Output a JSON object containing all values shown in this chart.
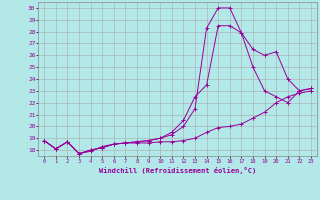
{
  "xlabel": "Windchill (Refroidissement éolien,°C)",
  "background_color": "#b2e8e8",
  "grid_color": "#aaaaaa",
  "line_color": "#990099",
  "xlim": [
    -0.5,
    23.5
  ],
  "ylim": [
    17.5,
    30.5
  ],
  "yticks": [
    18,
    19,
    20,
    21,
    22,
    23,
    24,
    25,
    26,
    27,
    28,
    29,
    30
  ],
  "xticks": [
    0,
    1,
    2,
    3,
    4,
    5,
    6,
    7,
    8,
    9,
    10,
    11,
    12,
    13,
    14,
    15,
    16,
    17,
    18,
    19,
    20,
    21,
    22,
    23
  ],
  "line1_x": [
    0,
    1,
    2,
    3,
    4,
    5,
    6,
    7,
    8,
    9,
    10,
    11,
    12,
    13,
    14,
    15,
    16,
    17,
    18,
    19,
    20,
    21,
    22,
    23
  ],
  "line1_y": [
    18.8,
    18.1,
    18.7,
    17.7,
    17.9,
    18.3,
    18.5,
    18.6,
    18.6,
    18.6,
    18.7,
    18.7,
    18.8,
    19.0,
    19.5,
    19.9,
    20.0,
    20.2,
    20.7,
    21.2,
    22.0,
    22.5,
    22.8,
    23.0
  ],
  "line2_x": [
    0,
    1,
    2,
    3,
    4,
    5,
    6,
    7,
    8,
    9,
    10,
    11,
    12,
    13,
    14,
    15,
    16,
    17,
    18,
    19,
    20,
    21,
    22,
    23
  ],
  "line2_y": [
    18.8,
    18.1,
    18.7,
    17.7,
    18.0,
    18.2,
    18.5,
    18.6,
    18.7,
    18.8,
    19.0,
    19.5,
    20.5,
    22.5,
    23.5,
    28.5,
    28.5,
    27.9,
    26.5,
    26.0,
    26.3,
    24.0,
    23.0,
    23.2
  ],
  "line3_x": [
    0,
    1,
    2,
    3,
    4,
    5,
    6,
    7,
    8,
    9,
    10,
    11,
    12,
    13,
    14,
    15,
    16,
    17,
    18,
    19,
    20,
    21,
    22,
    23
  ],
  "line3_y": [
    18.8,
    18.1,
    18.7,
    17.7,
    18.0,
    18.2,
    18.5,
    18.6,
    18.7,
    18.8,
    19.0,
    19.3,
    20.0,
    21.5,
    28.3,
    30.0,
    30.0,
    27.9,
    25.0,
    23.0,
    22.5,
    22.0,
    23.0,
    23.2
  ]
}
